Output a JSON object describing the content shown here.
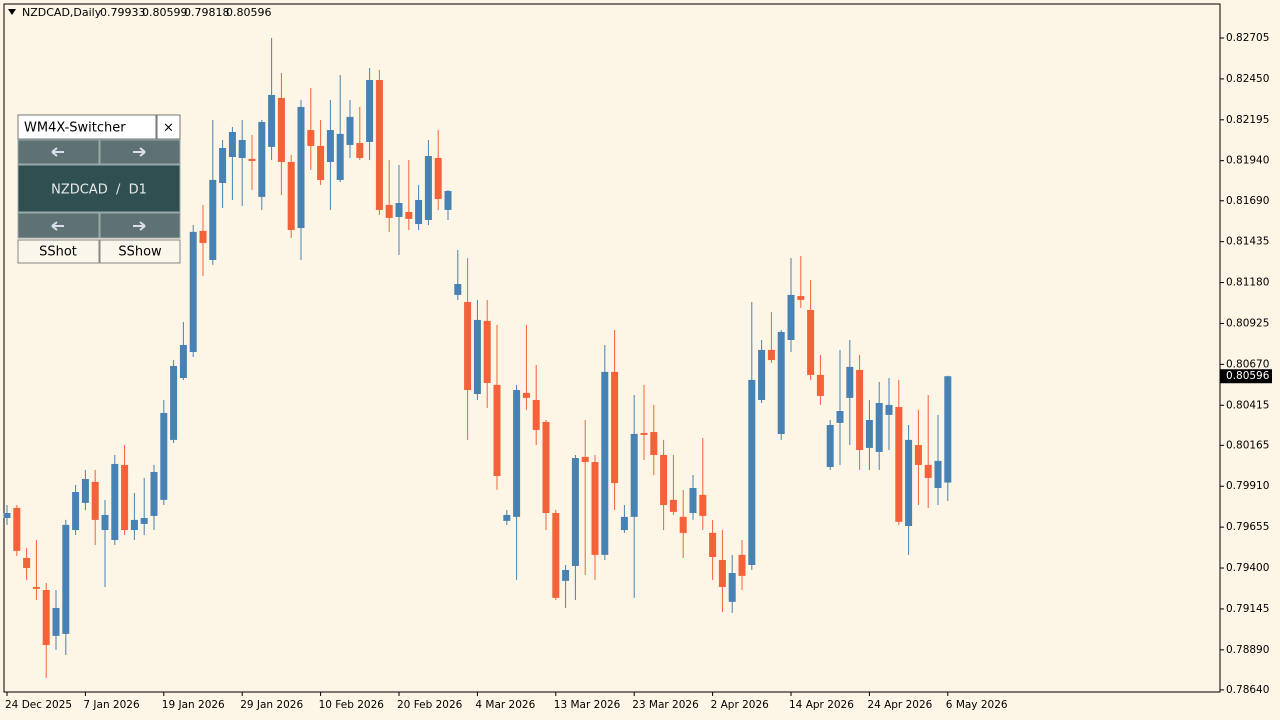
{
  "chart_data": {
    "type": "candlestick",
    "title": "NZDCAD,Daily",
    "categories": [
      "24 Dec 2025",
      null,
      null,
      null,
      null,
      null,
      null,
      null,
      "7 Jan 2026",
      null,
      null,
      null,
      null,
      null,
      null,
      null,
      "19 Jan 2026",
      null,
      null,
      null,
      null,
      null,
      null,
      null,
      "29 Jan 2026",
      null,
      null,
      null,
      null,
      null,
      null,
      null,
      "10 Feb 2026",
      null,
      null,
      null,
      null,
      null,
      null,
      null,
      "20 Feb 2026",
      null,
      null,
      null,
      null,
      null,
      null,
      null,
      "4 Mar 2026",
      null,
      null,
      null,
      null,
      null,
      null,
      null,
      "13 Mar 2026",
      null,
      null,
      null,
      null,
      null,
      null,
      null,
      "23 Mar 2026",
      null,
      null,
      null,
      null,
      null,
      null,
      null,
      "2 Apr 2026",
      null,
      null,
      null,
      null,
      null,
      null,
      null,
      "14 Apr 2026",
      null,
      null,
      null,
      null,
      null,
      null,
      null,
      "24 Apr 2026",
      null,
      null,
      null,
      null,
      null,
      null,
      null,
      "6 May 2026"
    ],
    "open": [
      0.79712,
      0.79775,
      0.79463,
      0.79282,
      0.79263,
      0.78977,
      0.78989,
      0.79637,
      0.79806,
      0.79937,
      0.79637,
      0.79575,
      0.80043,
      0.79637,
      0.79675,
      0.79725,
      0.79825,
      0.80199,
      0.80585,
      0.80747,
      0.81502,
      0.81321,
      0.81801,
      0.81963,
      0.81957,
      0.81951,
      0.81714,
      0.82026,
      0.82331,
      0.81932,
      0.8152,
      0.82131,
      0.82032,
      0.81932,
      0.8182,
      0.82038,
      0.8205,
      0.82057,
      0.82443,
      0.81664,
      0.81589,
      0.8162,
      0.81545,
      0.8157,
      0.81957,
      0.81633,
      0.81103,
      0.81059,
      0.80485,
      0.80941,
      0.80542,
      0.79694,
      0.79719,
      0.80492,
      0.80448,
      0.80311,
      0.79743,
      0.7932,
      0.79413,
      0.80093,
      0.80061,
      0.79482,
      0.80623,
      0.79637,
      0.79719,
      0.80242,
      0.80248,
      0.80105,
      0.79825,
      0.79719,
      0.79743,
      0.79856,
      0.79619,
      0.7945,
      0.79189,
      0.79482,
      0.79419,
      0.80448,
      0.8076,
      0.80236,
      0.80822,
      0.81096,
      0.81009,
      0.80604,
      0.8003,
      0.80305,
      0.80461,
      0.80635,
      0.80149,
      0.80124,
      0.80355,
      0.80404,
      0.79662,
      0.80167,
      0.80043,
      0.79899,
      0.79933
    ],
    "high": [
      0.79793,
      0.79793,
      0.79525,
      0.79575,
      0.79307,
      0.79263,
      0.797,
      0.79918,
      0.80012,
      0.80012,
      0.79825,
      0.80105,
      0.80167,
      0.79868,
      0.79962,
      0.80043,
      0.80448,
      0.80697,
      0.80934,
      0.81539,
      0.81664,
      0.82194,
      0.82069,
      0.8215,
      0.82194,
      0.821,
      0.82194,
      0.82705,
      0.82487,
      0.81976,
      0.82319,
      0.82393,
      0.82194,
      0.82319,
      0.82474,
      0.82319,
      0.82275,
      0.82518,
      0.82506,
      0.81944,
      0.81913,
      0.81944,
      0.81789,
      0.82069,
      0.82131,
      0.81757,
      0.81383,
      0.81333,
      0.81072,
      0.81072,
      0.80916,
      0.79762,
      0.80542,
      0.80916,
      0.80666,
      0.80323,
      0.79762,
      0.79419,
      0.80105,
      0.80323,
      0.80105,
      0.80791,
      0.80884,
      0.79793,
      0.80479,
      0.80542,
      0.80417,
      0.80199,
      0.80105,
      0.79887,
      0.7998,
      0.80211,
      0.797,
      0.79637,
      0.79482,
      0.79575,
      0.81059,
      0.80822,
      0.80997,
      0.80884,
      0.81333,
      0.81346,
      0.81196,
      0.80729,
      0.80323,
      0.8076,
      0.80822,
      0.80729,
      0.80448,
      0.8056,
      0.80585,
      0.80573,
      0.80292,
      0.80386,
      0.80479,
      0.80355,
      0.80599
    ],
    "low": [
      0.79669,
      0.79475,
      0.79326,
      0.79201,
      0.78715,
      0.78889,
      0.78858,
      0.79606,
      0.79762,
      0.79544,
      0.79282,
      0.79544,
      0.79606,
      0.79575,
      0.79606,
      0.79637,
      0.79793,
      0.8018,
      0.80573,
      0.80716,
      0.81221,
      0.8129,
      0.81645,
      0.81695,
      0.81658,
      0.81757,
      0.81633,
      0.81944,
      0.81726,
      0.81458,
      0.81321,
      0.81882,
      0.81789,
      0.81633,
      0.81807,
      0.81957,
      0.81944,
      0.81944,
      0.81602,
      0.81496,
      0.81352,
      0.81508,
      0.81508,
      0.81539,
      0.81633,
      0.8157,
      0.81072,
      0.80199,
      0.80448,
      0.80398,
      0.79887,
      0.79669,
      0.79326,
      0.80386,
      0.80167,
      0.79637,
      0.79201,
      0.79151,
      0.79201,
      0.79357,
      0.79326,
      0.7945,
      0.79762,
      0.79619,
      0.79214,
      0.80074,
      0.7998,
      0.79637,
      0.79731,
      0.79463,
      0.797,
      0.79637,
      0.79326,
      0.79126,
      0.7912,
      0.79263,
      0.79388,
      0.80429,
      0.80679,
      0.80199,
      0.80747,
      0.81022,
      0.80573,
      0.80417,
      0.80012,
      0.80043,
      0.80167,
      0.80012,
      0.80012,
      0.80012,
      0.80136,
      0.79669,
      0.79482,
      0.79793,
      0.79775,
      0.79793,
      0.79818
    ],
    "close": [
      0.79743,
      0.79507,
      0.794,
      0.7927,
      0.7892,
      0.79151,
      0.79669,
      0.79874,
      0.79955,
      0.797,
      0.79731,
      0.80049,
      0.79637,
      0.797,
      0.79712,
      0.79999,
      0.80367,
      0.8066,
      0.80791,
      0.81496,
      0.81427,
      0.8182,
      0.82019,
      0.82119,
      0.82069,
      0.81938,
      0.82181,
      0.8235,
      0.81932,
      0.81508,
      0.82275,
      0.82032,
      0.8182,
      0.82131,
      0.82107,
      0.82213,
      0.81957,
      0.82443,
      0.81633,
      0.81583,
      0.81676,
      0.81577,
      0.81695,
      0.81969,
      0.81701,
      0.81751,
      0.81171,
      0.8051,
      0.80947,
      0.80554,
      0.79974,
      0.79731,
      0.8051,
      0.80461,
      0.80261,
      0.79743,
      0.79214,
      0.79388,
      0.80086,
      0.80061,
      0.79482,
      0.80623,
      0.7993,
      0.79719,
      0.80236,
      0.8023,
      0.80105,
      0.79793,
      0.7975,
      0.79619,
      0.79899,
      0.79725,
      0.79469,
      0.79282,
      0.79369,
      0.79351,
      0.80573,
      0.8076,
      0.80697,
      0.80872,
      0.81103,
      0.81072,
      0.80604,
      0.80473,
      0.80292,
      0.80379,
      0.80654,
      0.80136,
      0.80323,
      0.80429,
      0.80417,
      0.79688,
      0.80199,
      0.80043,
      0.79962,
      0.80068,
      0.80596
    ],
    "up_color": "#4682b4",
    "down_color": "#f4623a",
    "ylim": [
      0.78627,
      0.82917
    ],
    "yticks": [
      0.82705,
      {
        "value": 0.8245,
        "label": "0.82450"
      },
      0.82195,
      {
        "value": 0.8194,
        "label": "0.81940"
      },
      {
        "value": 0.8169,
        "label": "0.81690"
      },
      0.81435,
      {
        "value": 0.8118,
        "label": "0.81180"
      },
      0.80925,
      {
        "value": 0.8067,
        "label": "0.80670"
      },
      0.80415,
      0.80165,
      {
        "value": 0.7991,
        "label": "0.79910"
      },
      0.79655,
      {
        "value": 0.794,
        "label": "0.79400"
      },
      0.79145,
      {
        "value": 0.7889,
        "label": "0.78890"
      },
      {
        "value": 0.7864,
        "label": "0.78640"
      }
    ],
    "grid": false
  },
  "panel": {
    "title": "WM4X-Switcher",
    "close": "×",
    "symbol": "NZDCAD  /  D1",
    "buttons": [
      "SShot",
      "SShow"
    ]
  }
}
